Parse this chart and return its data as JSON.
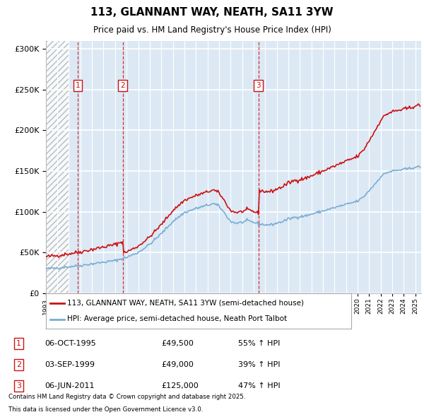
{
  "title": "113, GLANNANT WAY, NEATH, SA11 3YW",
  "subtitle": "Price paid vs. HM Land Registry's House Price Index (HPI)",
  "ylim": [
    0,
    310000
  ],
  "yticks": [
    0,
    50000,
    100000,
    150000,
    200000,
    250000,
    300000
  ],
  "ytick_labels": [
    "£0",
    "£50K",
    "£100K",
    "£150K",
    "£200K",
    "£250K",
    "£300K"
  ],
  "hpi_color": "#7aadd4",
  "price_color": "#cc1111",
  "legend_price_label": "113, GLANNANT WAY, NEATH, SA11 3YW (semi-detached house)",
  "legend_hpi_label": "HPI: Average price, semi-detached house, Neath Port Talbot",
  "transactions": [
    {
      "num": 1,
      "date": "06-OCT-1995",
      "price": 49500,
      "pct": "55%",
      "direction": "↑",
      "x_year": 1995.77
    },
    {
      "num": 2,
      "date": "03-SEP-1999",
      "price": 49000,
      "pct": "39%",
      "direction": "↑",
      "x_year": 1999.67
    },
    {
      "num": 3,
      "date": "06-JUN-2011",
      "price": 125000,
      "pct": "47%",
      "direction": "↑",
      "x_year": 2011.43
    }
  ],
  "footer_line1": "Contains HM Land Registry data © Crown copyright and database right 2025.",
  "footer_line2": "This data is licensed under the Open Government Licence v3.0.",
  "hatch_end_year": 1995.0,
  "xmin": 1993.0,
  "xmax": 2025.5
}
